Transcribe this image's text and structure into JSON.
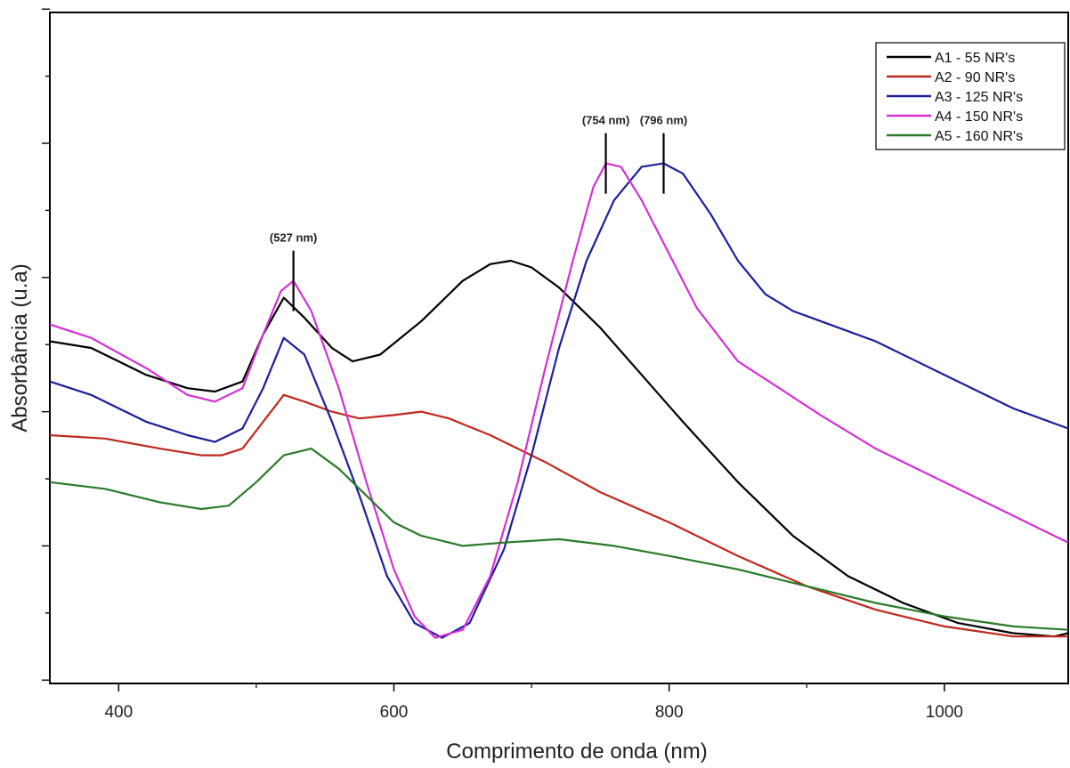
{
  "chart_data": {
    "type": "line",
    "title": "",
    "xlabel": "Comprimento de onda (nm)",
    "ylabel": "Absorbância (u.a)",
    "xlim": [
      350,
      1090
    ],
    "ylim": [
      0,
      1
    ],
    "x_ticks": [
      400,
      600,
      800,
      1000
    ],
    "x_tick_labels": [
      "400",
      "600",
      "800",
      "1000"
    ],
    "y_tick_labels_shown": false,
    "grid": false,
    "legend_position": "top-right",
    "series": [
      {
        "name": "A1 - 55 NR's",
        "color": "#000000",
        "points": [
          [
            350,
            0.51
          ],
          [
            380,
            0.5
          ],
          [
            420,
            0.46
          ],
          [
            450,
            0.44
          ],
          [
            470,
            0.435
          ],
          [
            490,
            0.45
          ],
          [
            505,
            0.52
          ],
          [
            520,
            0.575
          ],
          [
            535,
            0.545
          ],
          [
            555,
            0.5
          ],
          [
            570,
            0.48
          ],
          [
            590,
            0.49
          ],
          [
            620,
            0.54
          ],
          [
            650,
            0.6
          ],
          [
            670,
            0.625
          ],
          [
            685,
            0.63
          ],
          [
            700,
            0.62
          ],
          [
            720,
            0.59
          ],
          [
            750,
            0.53
          ],
          [
            780,
            0.46
          ],
          [
            810,
            0.39
          ],
          [
            850,
            0.3
          ],
          [
            890,
            0.22
          ],
          [
            930,
            0.16
          ],
          [
            970,
            0.12
          ],
          [
            1010,
            0.09
          ],
          [
            1050,
            0.075
          ],
          [
            1080,
            0.07
          ],
          [
            1090,
            0.075
          ]
        ]
      },
      {
        "name": "A2 - 90 NR's",
        "color": "#c0281e",
        "points": [
          [
            350,
            0.37
          ],
          [
            390,
            0.365
          ],
          [
            430,
            0.35
          ],
          [
            460,
            0.34
          ],
          [
            475,
            0.34
          ],
          [
            490,
            0.35
          ],
          [
            505,
            0.39
          ],
          [
            520,
            0.43
          ],
          [
            535,
            0.42
          ],
          [
            555,
            0.405
          ],
          [
            575,
            0.395
          ],
          [
            600,
            0.4
          ],
          [
            620,
            0.405
          ],
          [
            640,
            0.395
          ],
          [
            670,
            0.37
          ],
          [
            710,
            0.33
          ],
          [
            750,
            0.285
          ],
          [
            800,
            0.24
          ],
          [
            850,
            0.19
          ],
          [
            900,
            0.145
          ],
          [
            950,
            0.11
          ],
          [
            1000,
            0.085
          ],
          [
            1050,
            0.07
          ],
          [
            1090,
            0.07
          ]
        ]
      },
      {
        "name": "A3 - 125 NR's",
        "color": "#1b1f9a",
        "points": [
          [
            350,
            0.45
          ],
          [
            380,
            0.43
          ],
          [
            420,
            0.39
          ],
          [
            450,
            0.37
          ],
          [
            470,
            0.36
          ],
          [
            490,
            0.38
          ],
          [
            505,
            0.44
          ],
          [
            520,
            0.515
          ],
          [
            535,
            0.49
          ],
          [
            555,
            0.39
          ],
          [
            575,
            0.28
          ],
          [
            595,
            0.16
          ],
          [
            615,
            0.09
          ],
          [
            635,
            0.068
          ],
          [
            655,
            0.09
          ],
          [
            680,
            0.2
          ],
          [
            700,
            0.34
          ],
          [
            720,
            0.5
          ],
          [
            740,
            0.63
          ],
          [
            760,
            0.72
          ],
          [
            780,
            0.77
          ],
          [
            796,
            0.775
          ],
          [
            810,
            0.76
          ],
          [
            830,
            0.7
          ],
          [
            850,
            0.63
          ],
          [
            870,
            0.58
          ],
          [
            890,
            0.555
          ],
          [
            910,
            0.54
          ],
          [
            950,
            0.51
          ],
          [
            1000,
            0.46
          ],
          [
            1050,
            0.41
          ],
          [
            1090,
            0.38
          ]
        ]
      },
      {
        "name": "A4 - 150 NR's",
        "color": "#d430d4",
        "points": [
          [
            350,
            0.535
          ],
          [
            380,
            0.515
          ],
          [
            420,
            0.47
          ],
          [
            450,
            0.43
          ],
          [
            470,
            0.42
          ],
          [
            490,
            0.44
          ],
          [
            505,
            0.52
          ],
          [
            518,
            0.585
          ],
          [
            527,
            0.6
          ],
          [
            540,
            0.555
          ],
          [
            560,
            0.44
          ],
          [
            580,
            0.3
          ],
          [
            600,
            0.17
          ],
          [
            615,
            0.1
          ],
          [
            630,
            0.068
          ],
          [
            650,
            0.08
          ],
          [
            670,
            0.16
          ],
          [
            690,
            0.3
          ],
          [
            710,
            0.47
          ],
          [
            730,
            0.63
          ],
          [
            745,
            0.74
          ],
          [
            754,
            0.775
          ],
          [
            765,
            0.77
          ],
          [
            780,
            0.72
          ],
          [
            800,
            0.64
          ],
          [
            820,
            0.56
          ],
          [
            850,
            0.48
          ],
          [
            880,
            0.44
          ],
          [
            910,
            0.4
          ],
          [
            950,
            0.35
          ],
          [
            1000,
            0.3
          ],
          [
            1050,
            0.25
          ],
          [
            1090,
            0.21
          ]
        ]
      },
      {
        "name": "A5 - 160 NR's",
        "color": "#2a7a2a",
        "points": [
          [
            350,
            0.3
          ],
          [
            390,
            0.29
          ],
          [
            430,
            0.27
          ],
          [
            460,
            0.26
          ],
          [
            480,
            0.265
          ],
          [
            500,
            0.3
          ],
          [
            520,
            0.34
          ],
          [
            540,
            0.35
          ],
          [
            560,
            0.32
          ],
          [
            580,
            0.28
          ],
          [
            600,
            0.24
          ],
          [
            620,
            0.22
          ],
          [
            650,
            0.205
          ],
          [
            680,
            0.21
          ],
          [
            720,
            0.215
          ],
          [
            760,
            0.205
          ],
          [
            800,
            0.19
          ],
          [
            850,
            0.17
          ],
          [
            900,
            0.145
          ],
          [
            950,
            0.12
          ],
          [
            1000,
            0.1
          ],
          [
            1050,
            0.085
          ],
          [
            1090,
            0.08
          ]
        ]
      }
    ],
    "annotations": [
      {
        "label": "(527 nm)",
        "x": 527,
        "y": 0.6
      },
      {
        "label": "(754 nm)",
        "x": 754,
        "y": 0.775
      },
      {
        "label": "(796 nm)",
        "x": 796,
        "y": 0.775
      }
    ]
  }
}
